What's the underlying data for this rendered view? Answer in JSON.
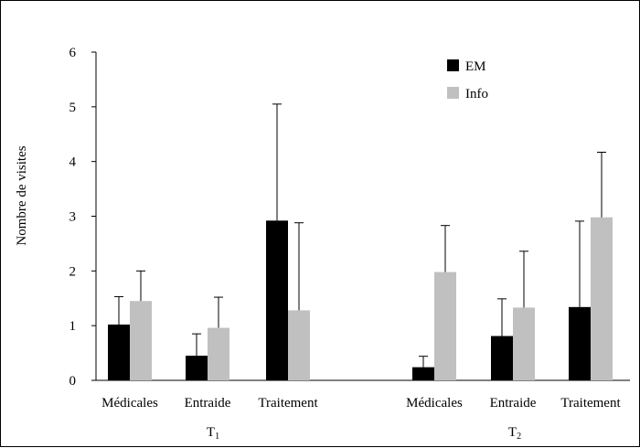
{
  "chart_data": {
    "type": "bar",
    "ylabel": "Nombre de visites",
    "ylim": [
      0,
      6
    ],
    "yticks": [
      0,
      1,
      2,
      3,
      4,
      5,
      6
    ],
    "groups": [
      {
        "label": "T1",
        "label_base": "T",
        "label_sub": "1",
        "categories": [
          "Médicales",
          "Entraide",
          "Traitement"
        ]
      },
      {
        "label": "T2",
        "label_base": "T",
        "label_sub": "2",
        "categories": [
          "Médicales",
          "Entraide",
          "Traitement"
        ]
      }
    ],
    "series": [
      {
        "name": "EM",
        "color": "#000000",
        "values": [
          [
            1.02,
            0.45,
            2.92
          ],
          [
            0.24,
            0.81,
            1.34
          ]
        ],
        "error": [
          [
            0.51,
            0.4,
            2.13
          ],
          [
            0.2,
            0.68,
            1.57
          ]
        ]
      },
      {
        "name": "Info",
        "color": "#c0c0c0",
        "values": [
          [
            1.45,
            0.96,
            1.28
          ],
          [
            1.98,
            1.33,
            2.98
          ]
        ],
        "error": [
          [
            0.55,
            0.56,
            1.6
          ],
          [
            0.85,
            1.03,
            1.19
          ]
        ]
      }
    ],
    "legend_position": "top-right",
    "grid": false
  }
}
